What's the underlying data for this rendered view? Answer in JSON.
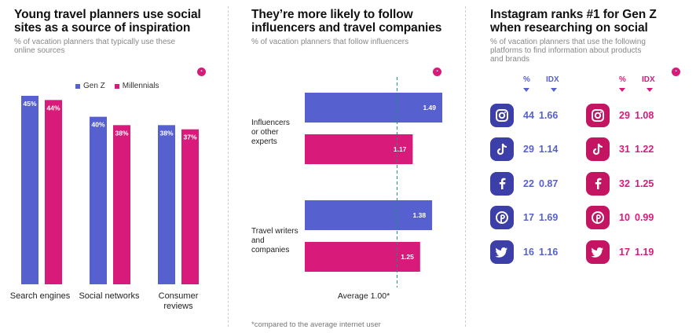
{
  "panel1": {
    "title_line1": "Young travel planners use social",
    "title_line2": "sites as a source of inspiration",
    "subtitle_line1": "% of vacation planners that typically use these",
    "subtitle_line2": "online sources",
    "logo": "logo-icon",
    "legend": [
      "Gen Z",
      "Millennials"
    ],
    "category_labels": [
      [
        "Search engines"
      ],
      [
        "Social networks"
      ],
      [
        "Consumer",
        "reviews"
      ]
    ]
  },
  "panel2": {
    "title_line1": "They’re more likely to follow",
    "title_line2": "influencers and travel companies",
    "subtitle": "% of vacation planners that follow influencers",
    "logo": "logo-icon",
    "category_labels": [
      [
        "Influencers",
        "or other",
        "experts"
      ],
      [
        "Travel writers",
        "and",
        "companies"
      ]
    ],
    "reference_label": "Average 1.00*",
    "footnote": "*compared to the average internet user"
  },
  "panel3": {
    "title_line1": "Instagram ranks #1 for Gen Z",
    "title_line2": "when researching on social",
    "subtitle_line1": "% of vacation planners that use the following",
    "subtitle_line2": "platforms to find information about products",
    "subtitle_line3": "and brands",
    "logo": "logo-icon",
    "col_pct": "%",
    "col_idx": "IDX"
  },
  "colors": {
    "gen_z": "#5661cf",
    "millennials": "#d81b7a",
    "gen_z_icon": "#3d3fa8",
    "millennials_icon": "#c41563"
  },
  "chart_data": [
    {
      "type": "bar",
      "title": "Young travel planners use social sites as a source of inspiration",
      "subtitle": "% of vacation planners that typically use these online sources",
      "categories": [
        "Search engines",
        "Social networks",
        "Consumer reviews"
      ],
      "series": [
        {
          "name": "Gen Z",
          "values": [
            45,
            40,
            38
          ],
          "labels": [
            "45%",
            "40%",
            "38%"
          ]
        },
        {
          "name": "Millennials",
          "values": [
            44,
            38,
            37
          ],
          "labels": [
            "44%",
            "38%",
            "37%"
          ]
        }
      ],
      "ylim": [
        0,
        50
      ],
      "legend_position": "top-left"
    },
    {
      "type": "bar",
      "orientation": "horizontal",
      "title": "They’re more likely to follow influencers and travel companies",
      "subtitle": "% of vacation planners that follow influencers",
      "categories": [
        "Influencers or other experts",
        "Travel writers and companies"
      ],
      "series": [
        {
          "name": "Gen Z",
          "values": [
            1.49,
            1.38
          ],
          "labels": [
            "1.49",
            "1.38"
          ]
        },
        {
          "name": "Millennials",
          "values": [
            1.17,
            1.25
          ],
          "labels": [
            "1.17",
            "1.25"
          ]
        }
      ],
      "reference_line": 1.0,
      "xlim": [
        0,
        1.55
      ]
    },
    {
      "type": "table",
      "title": "Instagram ranks #1 for Gen Z when researching on social",
      "columns": [
        "%",
        "IDX"
      ],
      "rows": [
        {
          "platform_icon": "instagram-icon",
          "gen_z": {
            "pct": "44",
            "idx": "1.66"
          },
          "millennials": {
            "pct": "29",
            "idx": "1.08"
          }
        },
        {
          "platform_icon": "tiktok-icon",
          "gen_z": {
            "pct": "29",
            "idx": "1.14"
          },
          "millennials": {
            "pct": "31",
            "idx": "1.22"
          }
        },
        {
          "platform_icon": "facebook-icon",
          "gen_z": {
            "pct": "22",
            "idx": "0.87"
          },
          "millennials": {
            "pct": "32",
            "idx": "1.25"
          }
        },
        {
          "platform_icon": "pinterest-icon",
          "gen_z": {
            "pct": "17",
            "idx": "1.69"
          },
          "millennials": {
            "pct": "10",
            "idx": "0.99"
          }
        },
        {
          "platform_icon": "twitter-icon",
          "gen_z": {
            "pct": "16",
            "idx": "1.16"
          },
          "millennials": {
            "pct": "17",
            "idx": "1.19"
          }
        }
      ]
    }
  ]
}
